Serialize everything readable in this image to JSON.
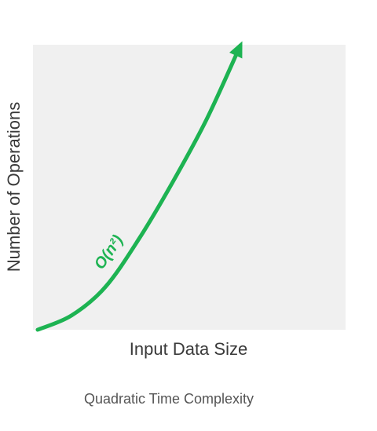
{
  "caption": "Quadratic Time Complexity",
  "chart_data": {
    "type": "line",
    "title": "",
    "xlabel": "Input Data Size",
    "ylabel": "Number of Operations",
    "xlim": [
      0,
      1
    ],
    "ylim": [
      0,
      1
    ],
    "grid": false,
    "axis_ticks": false,
    "background_color": "#f0f0f0",
    "series": [
      {
        "label": "O(n²)",
        "color": "#1db352",
        "arrow_end": true,
        "x": [
          0,
          0.1,
          0.2,
          0.3,
          0.4,
          0.5,
          0.6
        ],
        "y": [
          0,
          0.05,
          0.15,
          0.32,
          0.52,
          0.74,
          1.0
        ]
      }
    ]
  }
}
